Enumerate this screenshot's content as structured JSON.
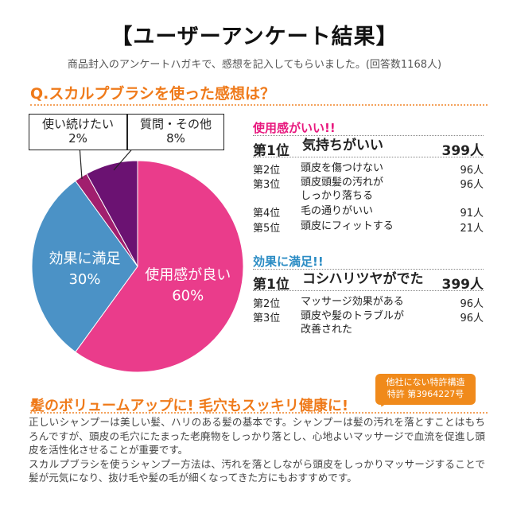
{
  "header": {
    "title": "【ユーザーアンケート結果】",
    "subtitle": "商品封入のアンケートハガキで、感想を記入してもらいました。(回答数1168人)"
  },
  "question": "Q.スカルプブラシを使った感想は？",
  "chart_data": {
    "type": "pie",
    "slices": [
      {
        "label": "使用感が良い",
        "percent_label": "60%",
        "value": 60,
        "color": "#ea3c8b"
      },
      {
        "label": "効果に満足",
        "percent_label": "30%",
        "value": 30,
        "color": "#4b92c6"
      },
      {
        "label": "使い続けたい",
        "percent_label": "2%",
        "value": 2,
        "color": "#a11f6e"
      },
      {
        "label": "質問・その他",
        "percent_label": "8%",
        "value": 8,
        "color": "#6b1272"
      }
    ]
  },
  "sections": [
    {
      "heading": "使用感がいい!!",
      "rows": [
        {
          "rank": "第1位",
          "text": "気持ちがいい",
          "count": "399人"
        },
        {
          "rank": "第2位",
          "text": "頭皮を傷つけない",
          "count": "96人"
        },
        {
          "rank": "第3位",
          "text": "頭皮頭髪の汚れが",
          "text2": "しっかり落ちる",
          "count": "96人"
        },
        {
          "rank": "第4位",
          "text": "毛の通りがいい",
          "count": "91人"
        },
        {
          "rank": "第5位",
          "text": "頭皮にフィットする",
          "count": "21人"
        }
      ]
    },
    {
      "heading": "効果に満足!!",
      "rows": [
        {
          "rank": "第1位",
          "text": "コシハリツヤがでた",
          "count": "399人"
        },
        {
          "rank": "第2位",
          "text": "マッサージ効果がある",
          "count": "96人"
        },
        {
          "rank": "第3位",
          "text": "頭皮や髪のトラブルが",
          "text2": "改善された",
          "count": "96人"
        }
      ]
    }
  ],
  "badge": {
    "line1": "他社にない特許構造",
    "line2": "特許 第3964227号"
  },
  "headline": "髪のボリュームアップに! 毛穴もスッキリ健康に!",
  "body": [
    "正しいシャンプーは美しい髪、ハリのある髪の基本です。シャンプーは髪の汚れを落とすことはもちろんですが、頭皮の毛穴にたまった老廃物をしっかり落とし、心地よいマッサージで血流を促進し頭皮を活性化させることが重要です。",
    "スカルプブラシを使うシャンプー方法は、汚れを落としながら頭皮をしっかりマッサージすることで髪が元気になり、抜け毛や髪の毛が細くなってきた方にもおすすめです。"
  ]
}
